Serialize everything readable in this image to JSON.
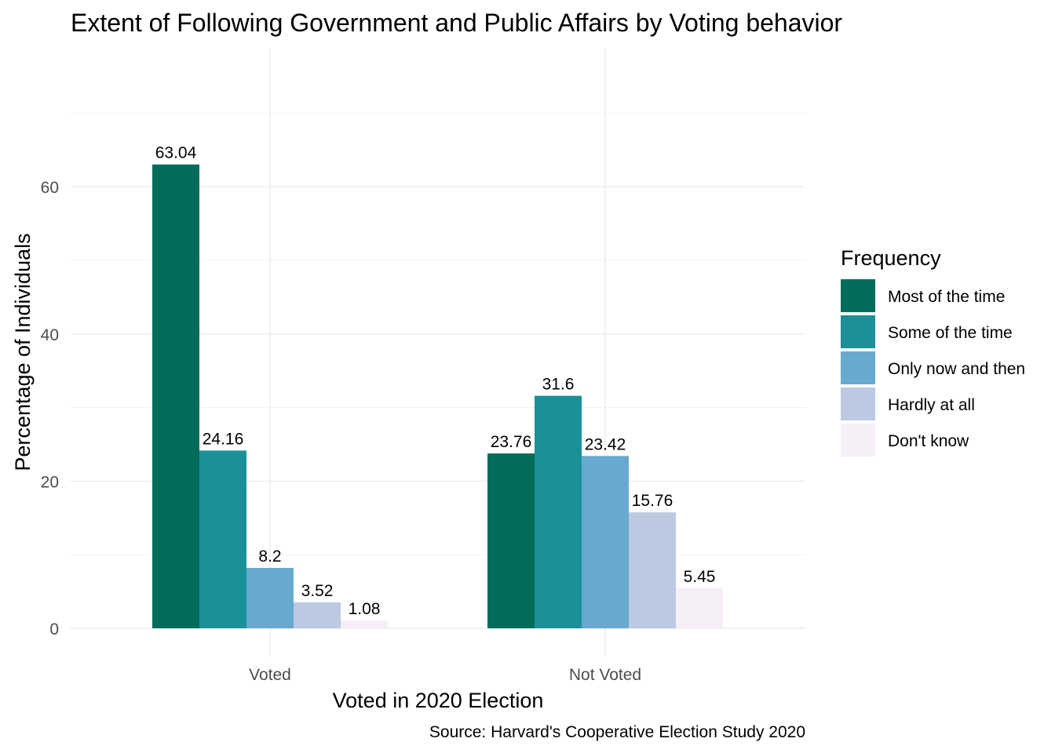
{
  "chart_data": {
    "type": "bar",
    "title": "Extent of Following Government and Public Affairs by Voting behavior",
    "xlabel": "Voted in 2020 Election",
    "ylabel": "Percentage of Individuals",
    "caption": "Source: Harvard's Cooperative Election Study 2020",
    "categories": [
      "Voted",
      "Not Voted"
    ],
    "ylim": [
      0,
      70
    ],
    "yticks": [
      0,
      20,
      40,
      60
    ],
    "grid": true,
    "legend": {
      "title": "Frequency",
      "placement": "right"
    },
    "series": [
      {
        "name": "Most of the time",
        "color": "#016c59",
        "values": [
          63.04,
          23.76
        ],
        "labels": [
          "63.04",
          "23.76"
        ]
      },
      {
        "name": "Some of the time",
        "color": "#1c9099",
        "values": [
          24.16,
          31.6
        ],
        "labels": [
          "24.16",
          "31.6"
        ]
      },
      {
        "name": "Only now and then",
        "color": "#67a9cf",
        "values": [
          8.2,
          23.42
        ],
        "labels": [
          "8.2",
          "23.42"
        ]
      },
      {
        "name": "Hardly at all",
        "color": "#bdc9e1",
        "values": [
          3.52,
          15.76
        ],
        "labels": [
          "3.52",
          "15.76"
        ]
      },
      {
        "name": "Don't know",
        "color": "#f6eff7",
        "values": [
          1.08,
          5.45
        ],
        "labels": [
          "1.08",
          "5.45"
        ]
      }
    ]
  }
}
